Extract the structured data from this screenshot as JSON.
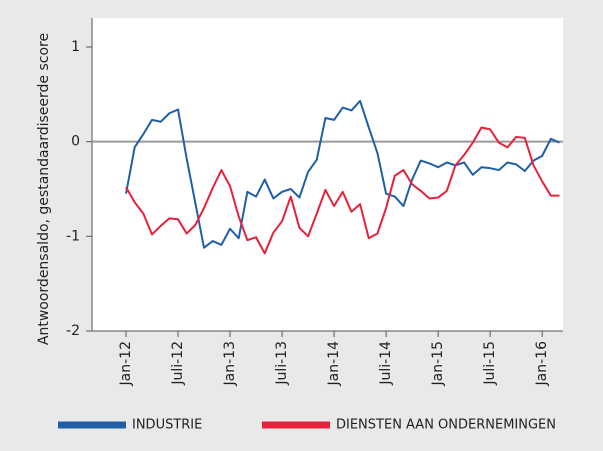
{
  "chart_data": {
    "type": "line",
    "y_label": "Antwoordensaldo, gestandaardiseerde score",
    "categories": [
      "Jan-12",
      null,
      null,
      null,
      null,
      null,
      "Juli-12",
      null,
      null,
      null,
      null,
      null,
      "Jan-13",
      null,
      null,
      null,
      null,
      null,
      "Juli-13",
      null,
      null,
      null,
      null,
      null,
      "Jan-14",
      null,
      null,
      null,
      null,
      null,
      "Juli-14",
      null,
      null,
      null,
      null,
      null,
      "Jan-15",
      null,
      null,
      null,
      null,
      null,
      "Juli-15",
      null,
      null,
      null,
      null,
      null,
      "Jan-16",
      null,
      null
    ],
    "series": [
      {
        "name": "INDUSTRIE",
        "color": "#1f5fa8",
        "values": [
          -0.55,
          -0.06,
          0.08,
          0.23,
          0.21,
          0.3,
          0.34,
          -0.18,
          -0.65,
          -1.12,
          -1.05,
          -1.09,
          -0.92,
          -1.02,
          -0.53,
          -0.58,
          -0.4,
          -0.6,
          -0.53,
          -0.5,
          -0.59,
          -0.32,
          -0.19,
          0.25,
          0.23,
          0.36,
          0.33,
          0.43,
          0.15,
          -0.12,
          -0.55,
          -0.58,
          -0.68,
          -0.4,
          -0.2,
          -0.23,
          -0.27,
          -0.22,
          -0.25,
          -0.22,
          -0.35,
          -0.27,
          -0.28,
          -0.3,
          -0.22,
          -0.24,
          -0.31,
          -0.2,
          -0.15,
          0.03,
          -0.01
        ]
      },
      {
        "name": "DIENSTEN AAN ONDERNEMINGEN",
        "color": "#e8213a",
        "values": [
          -0.48,
          -0.64,
          -0.76,
          -0.98,
          -0.89,
          -0.81,
          -0.82,
          -0.97,
          -0.88,
          -0.7,
          -0.49,
          -0.3,
          -0.47,
          -0.79,
          -1.04,
          -1.01,
          -1.18,
          -0.96,
          -0.84,
          -0.58,
          -0.91,
          -1.0,
          -0.76,
          -0.51,
          -0.68,
          -0.53,
          -0.74,
          -0.66,
          -1.02,
          -0.97,
          -0.7,
          -0.36,
          -0.3,
          -0.45,
          -0.52,
          -0.6,
          -0.59,
          -0.52,
          -0.25,
          -0.14,
          -0.01,
          0.15,
          0.13,
          -0.01,
          -0.06,
          0.05,
          0.04,
          -0.25,
          -0.42,
          -0.57,
          -0.57
        ]
      }
    ],
    "ylim": [
      -2,
      1
    ],
    "yticks": [
      -2,
      -1,
      0,
      1
    ],
    "zero_line": true,
    "grid": false
  }
}
